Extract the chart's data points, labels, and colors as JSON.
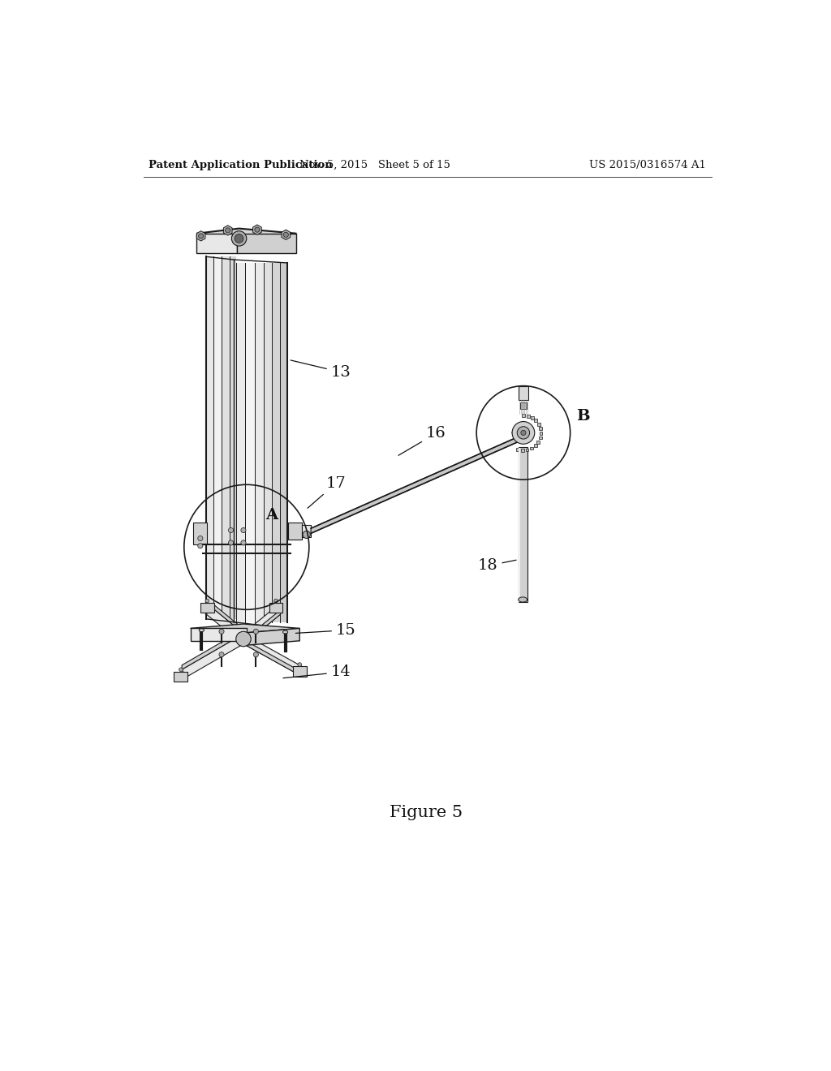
{
  "background_color": "#ffffff",
  "header_left": "Patent Application Publication",
  "header_mid": "Nov. 5, 2015   Sheet 5 of 15",
  "header_right": "US 2015/0316574 A1",
  "caption": "Figure 5",
  "line_color": "#1a1a1a",
  "shade_light": "#e8e8e8",
  "shade_mid": "#d0d0d0",
  "shade_dark": "#b0b0b0"
}
